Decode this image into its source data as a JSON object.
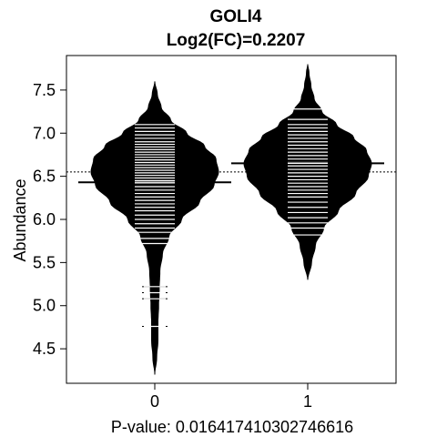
{
  "chart_data": {
    "type": "beanplot",
    "title": "GOLI4",
    "subtitle": "Log2(FC)=0.2207",
    "xlabel": "P-value: 0.016417410302746616",
    "ylabel": "Abundance",
    "x_ticks": [
      "0",
      "1"
    ],
    "y_ticks": [
      4.5,
      5.0,
      5.5,
      6.0,
      6.5,
      7.0,
      7.5
    ],
    "y_tick_labels": [
      "4.5",
      "5.0",
      "5.5",
      "6.0",
      "6.5",
      "7.0",
      "7.5"
    ],
    "ylim": [
      4.1,
      7.9
    ],
    "overall_mean": 6.55,
    "groups": [
      {
        "category": "0",
        "mean": 6.43,
        "density_min": 4.2,
        "density_max": 7.6,
        "density": [
          [
            4.2,
            0.0
          ],
          [
            4.4,
            0.03
          ],
          [
            4.6,
            0.05
          ],
          [
            4.8,
            0.05
          ],
          [
            5.0,
            0.06
          ],
          [
            5.2,
            0.07
          ],
          [
            5.4,
            0.08
          ],
          [
            5.6,
            0.12
          ],
          [
            5.8,
            0.22
          ],
          [
            6.0,
            0.42
          ],
          [
            6.2,
            0.7
          ],
          [
            6.4,
            0.93
          ],
          [
            6.55,
            1.0
          ],
          [
            6.7,
            0.96
          ],
          [
            6.85,
            0.78
          ],
          [
            7.0,
            0.5
          ],
          [
            7.15,
            0.25
          ],
          [
            7.3,
            0.1
          ],
          [
            7.45,
            0.04
          ],
          [
            7.6,
            0.0
          ]
        ],
        "values": [
          4.76,
          5.08,
          5.15,
          5.22,
          5.72,
          5.78,
          5.85,
          5.9,
          5.95,
          6.0,
          6.05,
          6.1,
          6.14,
          6.18,
          6.22,
          6.26,
          6.3,
          6.34,
          6.38,
          6.42,
          6.45,
          6.48,
          6.51,
          6.54,
          6.57,
          6.6,
          6.63,
          6.66,
          6.69,
          6.72,
          6.75,
          6.78,
          6.81,
          6.84,
          6.87,
          6.9,
          6.94,
          6.98,
          7.02,
          7.06,
          7.1
        ]
      },
      {
        "category": "1",
        "mean": 6.65,
        "density_min": 5.3,
        "density_max": 7.8,
        "density": [
          [
            5.3,
            0.0
          ],
          [
            5.5,
            0.06
          ],
          [
            5.7,
            0.12
          ],
          [
            5.9,
            0.25
          ],
          [
            6.1,
            0.48
          ],
          [
            6.3,
            0.75
          ],
          [
            6.5,
            0.95
          ],
          [
            6.65,
            1.0
          ],
          [
            6.8,
            0.92
          ],
          [
            6.95,
            0.72
          ],
          [
            7.1,
            0.45
          ],
          [
            7.25,
            0.22
          ],
          [
            7.4,
            0.1
          ],
          [
            7.55,
            0.05
          ],
          [
            7.7,
            0.02
          ],
          [
            7.8,
            0.0
          ]
        ],
        "values": [
          5.82,
          5.9,
          5.96,
          6.02,
          6.08,
          6.14,
          6.2,
          6.26,
          6.3,
          6.34,
          6.38,
          6.42,
          6.46,
          6.5,
          6.54,
          6.58,
          6.62,
          6.66,
          6.7,
          6.74,
          6.78,
          6.82,
          6.86,
          6.9,
          6.94,
          6.98,
          7.02,
          7.06,
          7.1,
          7.16,
          7.28
        ]
      }
    ]
  }
}
